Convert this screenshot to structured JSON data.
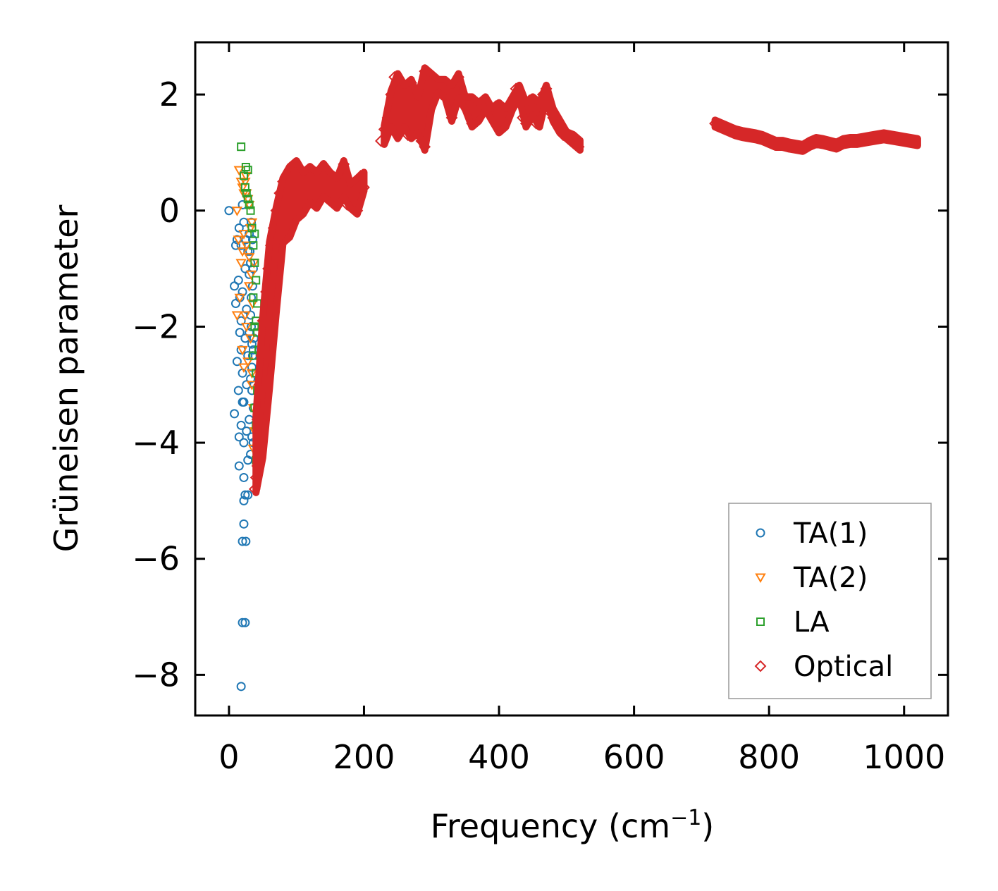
{
  "chart_data": {
    "type": "scatter",
    "title": "",
    "xlabel": "Frequency (cm",
    "xlabel_sup": "−1",
    "xlabel_close": ")",
    "ylabel": "Grüneisen parameter",
    "xlim": [
      -50,
      1065
    ],
    "ylim": [
      -8.7,
      2.9
    ],
    "xticks": [
      0,
      200,
      400,
      600,
      800,
      1000
    ],
    "xtick_labels": [
      "0",
      "200",
      "400",
      "600",
      "800",
      "1000"
    ],
    "yticks": [
      -8,
      -6,
      -4,
      -2,
      0,
      2
    ],
    "ytick_labels": [
      "−8",
      "−6",
      "−4",
      "−2",
      "0",
      "2"
    ],
    "grid": false,
    "legend_position": "bottom-right",
    "series": [
      {
        "name": "TA(1)",
        "marker": "circle",
        "color": "#1f77b4",
        "points": [
          [
            0,
            0
          ],
          [
            10,
            -0.6
          ],
          [
            12,
            -0.5
          ],
          [
            15,
            -0.3
          ],
          [
            18,
            -0.6
          ],
          [
            20,
            0.1
          ],
          [
            22,
            -0.2
          ],
          [
            25,
            -0.5
          ],
          [
            28,
            -0.7
          ],
          [
            30,
            -0.4
          ],
          [
            8,
            -1.3
          ],
          [
            10,
            -1.6
          ],
          [
            14,
            -1.2
          ],
          [
            16,
            -1.5
          ],
          [
            18,
            -1.9
          ],
          [
            20,
            -1.4
          ],
          [
            24,
            -1.0
          ],
          [
            26,
            -1.7
          ],
          [
            30,
            -1.1
          ],
          [
            32,
            -0.9
          ],
          [
            12,
            -2.6
          ],
          [
            14,
            -3.1
          ],
          [
            16,
            -2.1
          ],
          [
            18,
            -2.4
          ],
          [
            20,
            -2.8
          ],
          [
            22,
            -3.3
          ],
          [
            24,
            -2.2
          ],
          [
            26,
            -3.0
          ],
          [
            28,
            -2.5
          ],
          [
            30,
            -3.6
          ],
          [
            8,
            -3.5
          ],
          [
            15,
            -3.9
          ],
          [
            18,
            -3.7
          ],
          [
            20,
            -3.3
          ],
          [
            22,
            -4.0
          ],
          [
            26,
            -3.8
          ],
          [
            28,
            -4.3
          ],
          [
            32,
            -4.2
          ],
          [
            34,
            -3.9
          ],
          [
            36,
            -4.0
          ],
          [
            15,
            -4.4
          ],
          [
            22,
            -4.6
          ],
          [
            24,
            -4.9
          ],
          [
            22,
            -5.0
          ],
          [
            22,
            -5.4
          ],
          [
            20,
            -5.7
          ],
          [
            25,
            -5.7
          ],
          [
            28,
            -4.9
          ],
          [
            20,
            -7.1
          ],
          [
            24,
            -7.1
          ],
          [
            18,
            -8.2
          ],
          [
            32,
            -1.8
          ],
          [
            33,
            -2.0
          ],
          [
            34,
            -2.3
          ],
          [
            35,
            -2.5
          ],
          [
            34,
            -2.7
          ],
          [
            33,
            -1.5
          ],
          [
            35,
            -1.3
          ],
          [
            32,
            -2.9
          ],
          [
            34,
            -3.1
          ],
          [
            36,
            -3.4
          ],
          [
            31,
            -0.7
          ],
          [
            33,
            -0.2
          ],
          [
            35,
            -0.5
          ],
          [
            36,
            -1.0
          ],
          [
            30,
            -2.1
          ],
          [
            36,
            -2.4
          ],
          [
            37,
            -2.2
          ]
        ]
      },
      {
        "name": "TA(2)",
        "marker": "triangle-down",
        "color": "#ff7f0e",
        "points": [
          [
            15,
            0.7
          ],
          [
            18,
            0.5
          ],
          [
            20,
            0.4
          ],
          [
            22,
            0.3
          ],
          [
            25,
            0.6
          ],
          [
            28,
            0.2
          ],
          [
            30,
            0.1
          ],
          [
            12,
            0.0
          ],
          [
            24,
            0.5
          ],
          [
            26,
            0.3
          ],
          [
            14,
            -0.5
          ],
          [
            18,
            -0.9
          ],
          [
            20,
            -0.7
          ],
          [
            22,
            -0.4
          ],
          [
            26,
            -0.6
          ],
          [
            30,
            -0.8
          ],
          [
            32,
            -0.3
          ],
          [
            34,
            -0.2
          ],
          [
            16,
            -1.5
          ],
          [
            20,
            -2.4
          ],
          [
            22,
            -2.7
          ],
          [
            24,
            -1.8
          ],
          [
            26,
            -2.0
          ],
          [
            28,
            -2.6
          ],
          [
            30,
            -1.3
          ],
          [
            32,
            -2.2
          ],
          [
            34,
            -3.0
          ],
          [
            36,
            -3.4
          ],
          [
            38,
            -3.8
          ],
          [
            36,
            -4.1
          ],
          [
            34,
            -2.8
          ],
          [
            35,
            -1.6
          ],
          [
            33,
            -1.1
          ],
          [
            37,
            -0.9
          ],
          [
            12,
            -1.8
          ]
        ]
      },
      {
        "name": "LA",
        "marker": "square",
        "color": "#2ca02c",
        "points": [
          [
            18,
            1.1
          ],
          [
            25,
            0.75
          ],
          [
            28,
            0.7
          ],
          [
            22,
            0.6
          ],
          [
            24,
            0.4
          ],
          [
            26,
            0.3
          ],
          [
            28,
            0.2
          ],
          [
            30,
            0.1
          ],
          [
            32,
            0.0
          ],
          [
            34,
            -0.3
          ],
          [
            36,
            -0.6
          ],
          [
            38,
            -0.9
          ],
          [
            40,
            -1.2
          ],
          [
            42,
            -1.6
          ],
          [
            40,
            -1.9
          ],
          [
            42,
            -2.1
          ],
          [
            44,
            -2.4
          ],
          [
            40,
            -2.8
          ],
          [
            42,
            -3.1
          ],
          [
            38,
            -3.4
          ],
          [
            40,
            -3.7
          ],
          [
            42,
            -4.0
          ],
          [
            40,
            -4.3
          ],
          [
            36,
            -2.5
          ],
          [
            38,
            -2.0
          ],
          [
            36,
            -1.5
          ],
          [
            38,
            -0.4
          ]
        ]
      },
      {
        "name": "Optical",
        "marker": "diamond",
        "color": "#d62728",
        "points": [
          [
            38,
            -4.8
          ],
          [
            40,
            -4.6
          ],
          [
            42,
            -4.4
          ],
          [
            45,
            -4.2
          ],
          [
            48,
            -3.9
          ],
          [
            50,
            -3.6
          ],
          [
            52,
            -3.3
          ],
          [
            55,
            -3.0
          ],
          [
            58,
            -2.6
          ],
          [
            60,
            -2.3
          ],
          [
            62,
            -2.0
          ],
          [
            65,
            -1.7
          ],
          [
            68,
            -1.4
          ],
          [
            70,
            -1.1
          ],
          [
            72,
            -0.8
          ],
          [
            75,
            -0.5
          ],
          [
            78,
            -0.3
          ],
          [
            80,
            -0.1
          ],
          [
            85,
            0.1
          ],
          [
            90,
            0.2
          ],
          [
            42,
            -3.6
          ],
          [
            45,
            -3.0
          ],
          [
            48,
            -2.5
          ],
          [
            50,
            -1.9
          ],
          [
            55,
            -1.4
          ],
          [
            58,
            -1.0
          ],
          [
            62,
            -0.6
          ],
          [
            66,
            -0.3
          ],
          [
            70,
            0.0
          ],
          [
            75,
            0.3
          ],
          [
            80,
            0.5
          ],
          [
            85,
            0.6
          ],
          [
            90,
            0.7
          ],
          [
            95,
            0.75
          ],
          [
            100,
            0.8
          ],
          [
            95,
            0.1
          ],
          [
            100,
            0.3
          ],
          [
            105,
            0.5
          ],
          [
            110,
            0.6
          ],
          [
            115,
            0.4
          ],
          [
            120,
            0.7
          ],
          [
            125,
            0.5
          ],
          [
            130,
            0.6
          ],
          [
            135,
            0.3
          ],
          [
            140,
            0.4
          ],
          [
            145,
            0.6
          ],
          [
            150,
            0.2
          ],
          [
            155,
            0.4
          ],
          [
            160,
            0.5
          ],
          [
            165,
            0.3
          ],
          [
            170,
            0.6
          ],
          [
            175,
            0.1
          ],
          [
            180,
            0.4
          ],
          [
            185,
            0.3
          ],
          [
            190,
            0.5
          ],
          [
            195,
            0.6
          ],
          [
            200,
            0.4
          ],
          [
            120,
            0.2
          ],
          [
            140,
            0.75
          ],
          [
            160,
            0.1
          ],
          [
            85,
            -0.4
          ],
          [
            90,
            -0.2
          ],
          [
            95,
            -0.1
          ],
          [
            105,
            0.0
          ],
          [
            110,
            0.2
          ],
          [
            130,
            0.1
          ],
          [
            150,
            0.6
          ],
          [
            170,
            0.8
          ],
          [
            180,
            0.2
          ],
          [
            190,
            0.0
          ],
          [
            225,
            1.2
          ],
          [
            230,
            1.4
          ],
          [
            235,
            1.6
          ],
          [
            240,
            2.0
          ],
          [
            245,
            2.3
          ],
          [
            250,
            2.2
          ],
          [
            255,
            1.8
          ],
          [
            260,
            1.5
          ],
          [
            265,
            1.3
          ],
          [
            270,
            1.6
          ],
          [
            275,
            1.9
          ],
          [
            280,
            1.4
          ],
          [
            285,
            1.2
          ],
          [
            290,
            1.1
          ],
          [
            295,
            1.8
          ],
          [
            300,
            2.3
          ],
          [
            305,
            2.2
          ],
          [
            310,
            2.1
          ],
          [
            315,
            2.0
          ],
          [
            320,
            2.2
          ],
          [
            325,
            2.1
          ],
          [
            330,
            1.9
          ],
          [
            335,
            2.0
          ],
          [
            340,
            2.3
          ],
          [
            345,
            1.9
          ],
          [
            350,
            1.8
          ],
          [
            355,
            1.7
          ],
          [
            360,
            1.9
          ],
          [
            365,
            1.8
          ],
          [
            370,
            1.6
          ],
          [
            375,
            1.8
          ],
          [
            380,
            1.9
          ],
          [
            385,
            1.7
          ],
          [
            390,
            1.6
          ],
          [
            395,
            1.8
          ],
          [
            400,
            1.7
          ],
          [
            405,
            1.5
          ],
          [
            410,
            1.7
          ],
          [
            415,
            1.8
          ],
          [
            420,
            1.9
          ],
          [
            425,
            2.1
          ],
          [
            430,
            2.0
          ],
          [
            435,
            1.6
          ],
          [
            440,
            1.8
          ],
          [
            445,
            1.9
          ],
          [
            450,
            1.7
          ],
          [
            455,
            1.5
          ],
          [
            460,
            1.8
          ],
          [
            465,
            2.0
          ],
          [
            470,
            2.1
          ],
          [
            475,
            1.7
          ],
          [
            480,
            1.6
          ],
          [
            485,
            1.5
          ],
          [
            490,
            1.4
          ],
          [
            495,
            1.3
          ],
          [
            500,
            1.3
          ],
          [
            505,
            1.25
          ],
          [
            510,
            1.2
          ],
          [
            515,
            1.15
          ],
          [
            518,
            1.1
          ],
          [
            240,
            1.5
          ],
          [
            250,
            1.3
          ],
          [
            260,
            2.1
          ],
          [
            270,
            2.2
          ],
          [
            280,
            1.9
          ],
          [
            290,
            2.4
          ],
          [
            330,
            1.6
          ],
          [
            360,
            1.5
          ],
          [
            400,
            1.4
          ],
          [
            440,
            1.5
          ],
          [
            720,
            1.5
          ],
          [
            730,
            1.45
          ],
          [
            740,
            1.4
          ],
          [
            750,
            1.35
          ],
          [
            760,
            1.32
          ],
          [
            770,
            1.3
          ],
          [
            780,
            1.28
          ],
          [
            790,
            1.25
          ],
          [
            800,
            1.2
          ],
          [
            810,
            1.15
          ],
          [
            820,
            1.15
          ],
          [
            830,
            1.12
          ],
          [
            840,
            1.1
          ],
          [
            850,
            1.08
          ],
          [
            860,
            1.15
          ],
          [
            870,
            1.2
          ],
          [
            880,
            1.18
          ],
          [
            890,
            1.15
          ],
          [
            900,
            1.12
          ],
          [
            910,
            1.18
          ],
          [
            920,
            1.2
          ],
          [
            930,
            1.2
          ],
          [
            940,
            1.22
          ],
          [
            950,
            1.24
          ],
          [
            960,
            1.26
          ],
          [
            970,
            1.28
          ],
          [
            980,
            1.26
          ],
          [
            990,
            1.24
          ],
          [
            1000,
            1.22
          ],
          [
            1010,
            1.2
          ],
          [
            1015,
            1.18
          ]
        ]
      }
    ]
  }
}
